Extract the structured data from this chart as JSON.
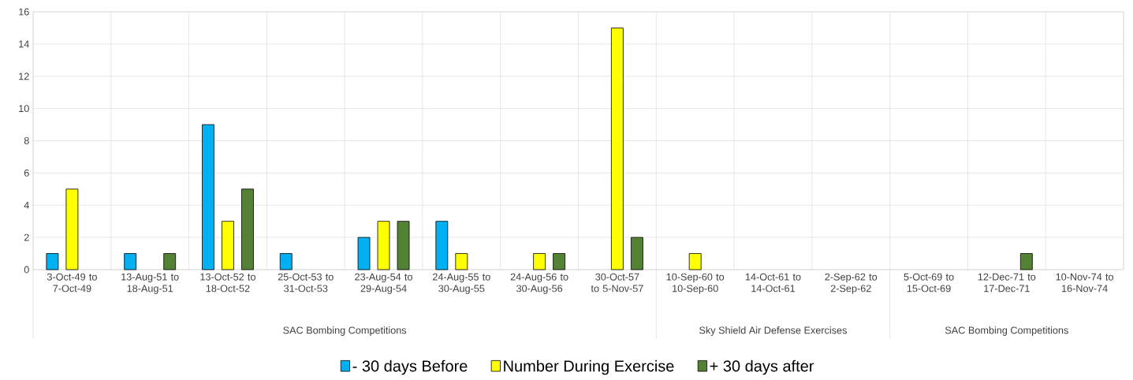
{
  "chart_data": {
    "type": "bar",
    "categories": [
      "3-Oct-49 to 7-Oct-49",
      "13-Aug-51 to 18-Aug-51",
      "13-Oct-52 to 18-Oct-52",
      "25-Oct-53 to 31-Oct-53",
      "23-Aug-54 to 29-Aug-54",
      "24-Aug-55 to 30-Aug-55",
      "24-Aug-56 to 30-Aug-56",
      "30-Oct-57 to 5-Nov-57",
      "10-Sep-60 to 10-Sep-60",
      "14-Oct-61 to 14-Oct-61",
      "2-Sep-62 to 2-Sep-62",
      "5-Oct-69 to 15-Oct-69",
      "12-Dec-71 to 17-Dec-71",
      "10-Nov-74 to 16-Nov-74"
    ],
    "series": [
      {
        "name": "- 30 days Before",
        "color": "#00b0f0",
        "values": [
          1,
          1,
          9,
          1,
          2,
          3,
          null,
          null,
          null,
          null,
          null,
          null,
          null,
          null
        ]
      },
      {
        "name": "Number During Exercise",
        "color": "#ffff00",
        "values": [
          5,
          null,
          3,
          null,
          3,
          1,
          1,
          15,
          1,
          null,
          null,
          null,
          null,
          null
        ]
      },
      {
        "name": "+ 30 days after",
        "color": "#548235",
        "values": [
          null,
          1,
          5,
          null,
          3,
          null,
          1,
          2,
          null,
          null,
          null,
          null,
          1,
          null
        ]
      }
    ],
    "ylim": [
      0,
      16
    ],
    "yticks": [
      0,
      2,
      4,
      6,
      8,
      10,
      12,
      14,
      16
    ],
    "grid": true,
    "legend": "bottom",
    "annotations": [
      "SAC Bombing Competitions",
      "Sky Shield Air Defense Exercises",
      "SAC Bombing Competitions"
    ]
  }
}
